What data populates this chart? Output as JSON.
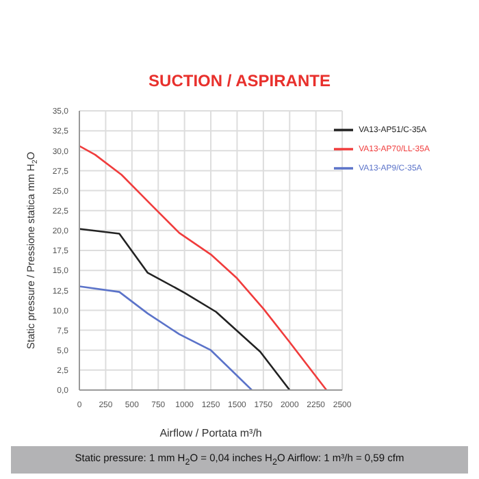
{
  "chart_data": {
    "type": "line",
    "title": "SUCTION / ASPIRANTE",
    "xlabel": "Airflow / Portata  m³/h",
    "ylabel": "Static pressure / Pressione statica  mm H$_{2}$O",
    "annotations": [
      "Static pressure: 1 mm H$_{2}$O = 0,04 inches H$_{2}$O     Airflow: 1 m³/h = 0,59 cfm"
    ],
    "series": [
      {
        "name": "VA13-AP70/LL-35A",
        "color": "#f03c3c",
        "x": [
          0,
          150,
          400,
          700,
          950,
          1250,
          1500,
          1750,
          2000,
          2350
        ],
        "values": [
          30.6,
          29.5,
          27,
          23,
          19.7,
          17,
          14,
          10.2,
          6,
          0
        ]
      },
      {
        "name": "VA13-AP51/C-35A",
        "color": "#222222",
        "x": [
          0,
          380,
          650,
          1000,
          1300,
          1720,
          2000
        ],
        "values": [
          20.2,
          19.6,
          14.7,
          12.2,
          9.8,
          4.8,
          0
        ]
      },
      {
        "name": "VA13-AP9/C-35A",
        "color": "#5b73c9",
        "x": [
          0,
          380,
          650,
          950,
          1250,
          1640
        ],
        "values": [
          13,
          12.3,
          9.6,
          7,
          5,
          0
        ]
      }
    ],
    "xlim": [
      0,
      2500
    ],
    "xticks": [
      0,
      250,
      500,
      750,
      1000,
      1250,
      1500,
      1750,
      2000,
      2250,
      2500
    ],
    "ylim": [
      0,
      35
    ],
    "yticks": [
      {
        "value": 0,
        "label": "0,0"
      },
      {
        "value": 2.5,
        "label": "2,5"
      },
      {
        "value": 5,
        "label": "5,0"
      },
      {
        "value": 7.5,
        "label": "7,5"
      },
      {
        "value": 10,
        "label": "10,0"
      },
      {
        "value": 12.5,
        "label": "12,5"
      },
      {
        "value": 15,
        "label": "15,0"
      },
      {
        "value": 17.5,
        "label": "17,5"
      },
      {
        "value": 20,
        "label": "20,0"
      },
      {
        "value": 22.5,
        "label": "22,5"
      },
      {
        "value": 25,
        "label": "25,0"
      },
      {
        "value": 27.5,
        "label": "27,5"
      },
      {
        "value": 30,
        "label": "30,0"
      },
      {
        "value": 32.5,
        "label": "32,5"
      },
      {
        "value": 35,
        "label": "35,0"
      }
    ],
    "grid": true,
    "legend": "top right",
    "marker": "none",
    "line_style": "solid"
  }
}
